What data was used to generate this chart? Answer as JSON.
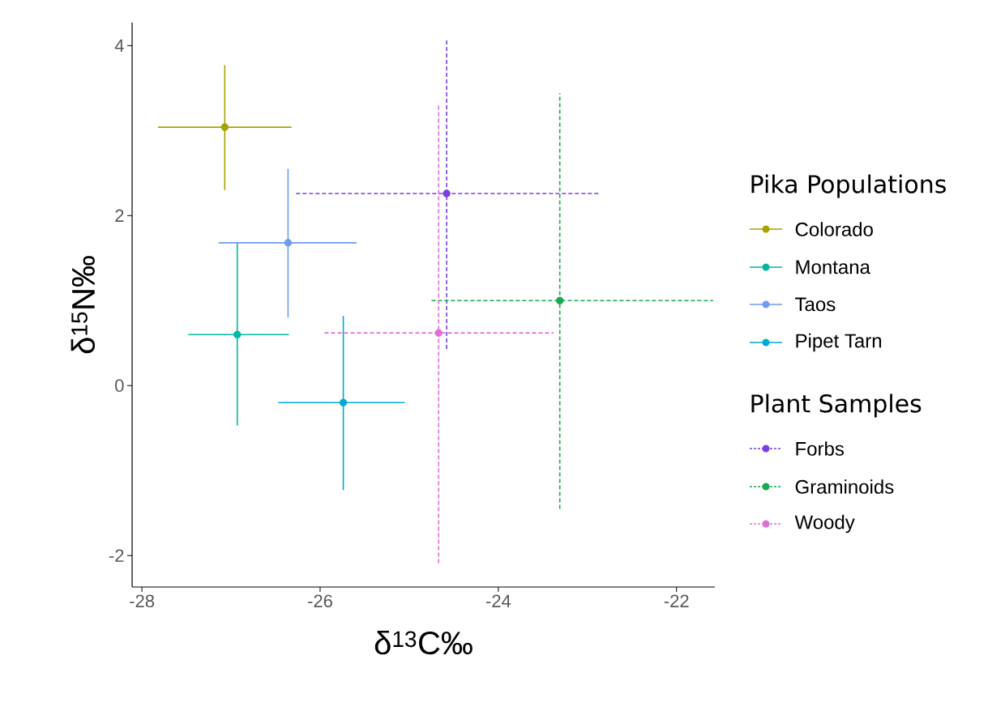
{
  "chart_data": {
    "type": "scatter",
    "xlabel": "δ$^{13}$C‰",
    "ylabel": "δ$^{15}$N‰",
    "legend_title": [
      "Pika Populations",
      "Plant Samples"
    ],
    "legend": "right",
    "marker": "circle",
    "grid": false,
    "xlim": [
      -28.11,
      -21.57
    ],
    "ylim": [
      -2.37,
      4.27
    ],
    "xticks": [
      -28,
      -26,
      -24,
      -22
    ],
    "yticks": [
      -2,
      0,
      2,
      4
    ],
    "series": [
      {
        "name": "Colorado",
        "color": "#a8a200",
        "line_style": "solid",
        "x": [
          -27.07
        ],
        "values": [
          3.04
        ],
        "xerrors": [
          [
            -27.82,
            -26.32
          ]
        ],
        "errors": [
          [
            2.3,
            3.77
          ]
        ]
      },
      {
        "name": "Montana",
        "color": "#00b8a0",
        "line_style": "solid",
        "x": [
          -26.93
        ],
        "values": [
          0.6
        ],
        "xerrors": [
          [
            -27.48,
            -26.35
          ]
        ],
        "errors": [
          [
            -0.47,
            1.68
          ]
        ]
      },
      {
        "name": "Taos",
        "color": "#6f9cf0",
        "line_style": "solid",
        "x": [
          -26.36
        ],
        "values": [
          1.68
        ],
        "xerrors": [
          [
            -27.14,
            -25.59
          ]
        ],
        "errors": [
          [
            0.8,
            2.55
          ]
        ]
      },
      {
        "name": "Pipet Tarn",
        "color": "#00a9d6",
        "line_style": "solid",
        "x": [
          -25.74
        ],
        "values": [
          -0.2
        ],
        "xerrors": [
          [
            -26.47,
            -25.05
          ]
        ],
        "errors": [
          [
            -1.23,
            0.82
          ]
        ]
      },
      {
        "name": "Forbs",
        "color": "#7b3fe0",
        "line_style": "dashed",
        "x": [
          -24.58
        ],
        "values": [
          2.26
        ],
        "xerrors": [
          [
            -26.27,
            -22.86
          ]
        ],
        "errors": [
          [
            0.43,
            4.08
          ]
        ]
      },
      {
        "name": "Graminoids",
        "color": "#1aa850",
        "line_style": "dashed",
        "x": [
          -23.31
        ],
        "values": [
          1.0
        ],
        "xerrors": [
          [
            -24.75,
            -21.59
          ]
        ],
        "errors": [
          [
            -1.45,
            3.44
          ]
        ]
      },
      {
        "name": "Woody",
        "color": "#e070d8",
        "line_style": "dashed",
        "x": [
          -24.67
        ],
        "values": [
          0.62
        ],
        "xerrors": [
          [
            -25.95,
            -23.38
          ]
        ],
        "errors": [
          [
            -2.09,
            3.31
          ]
        ]
      }
    ]
  }
}
